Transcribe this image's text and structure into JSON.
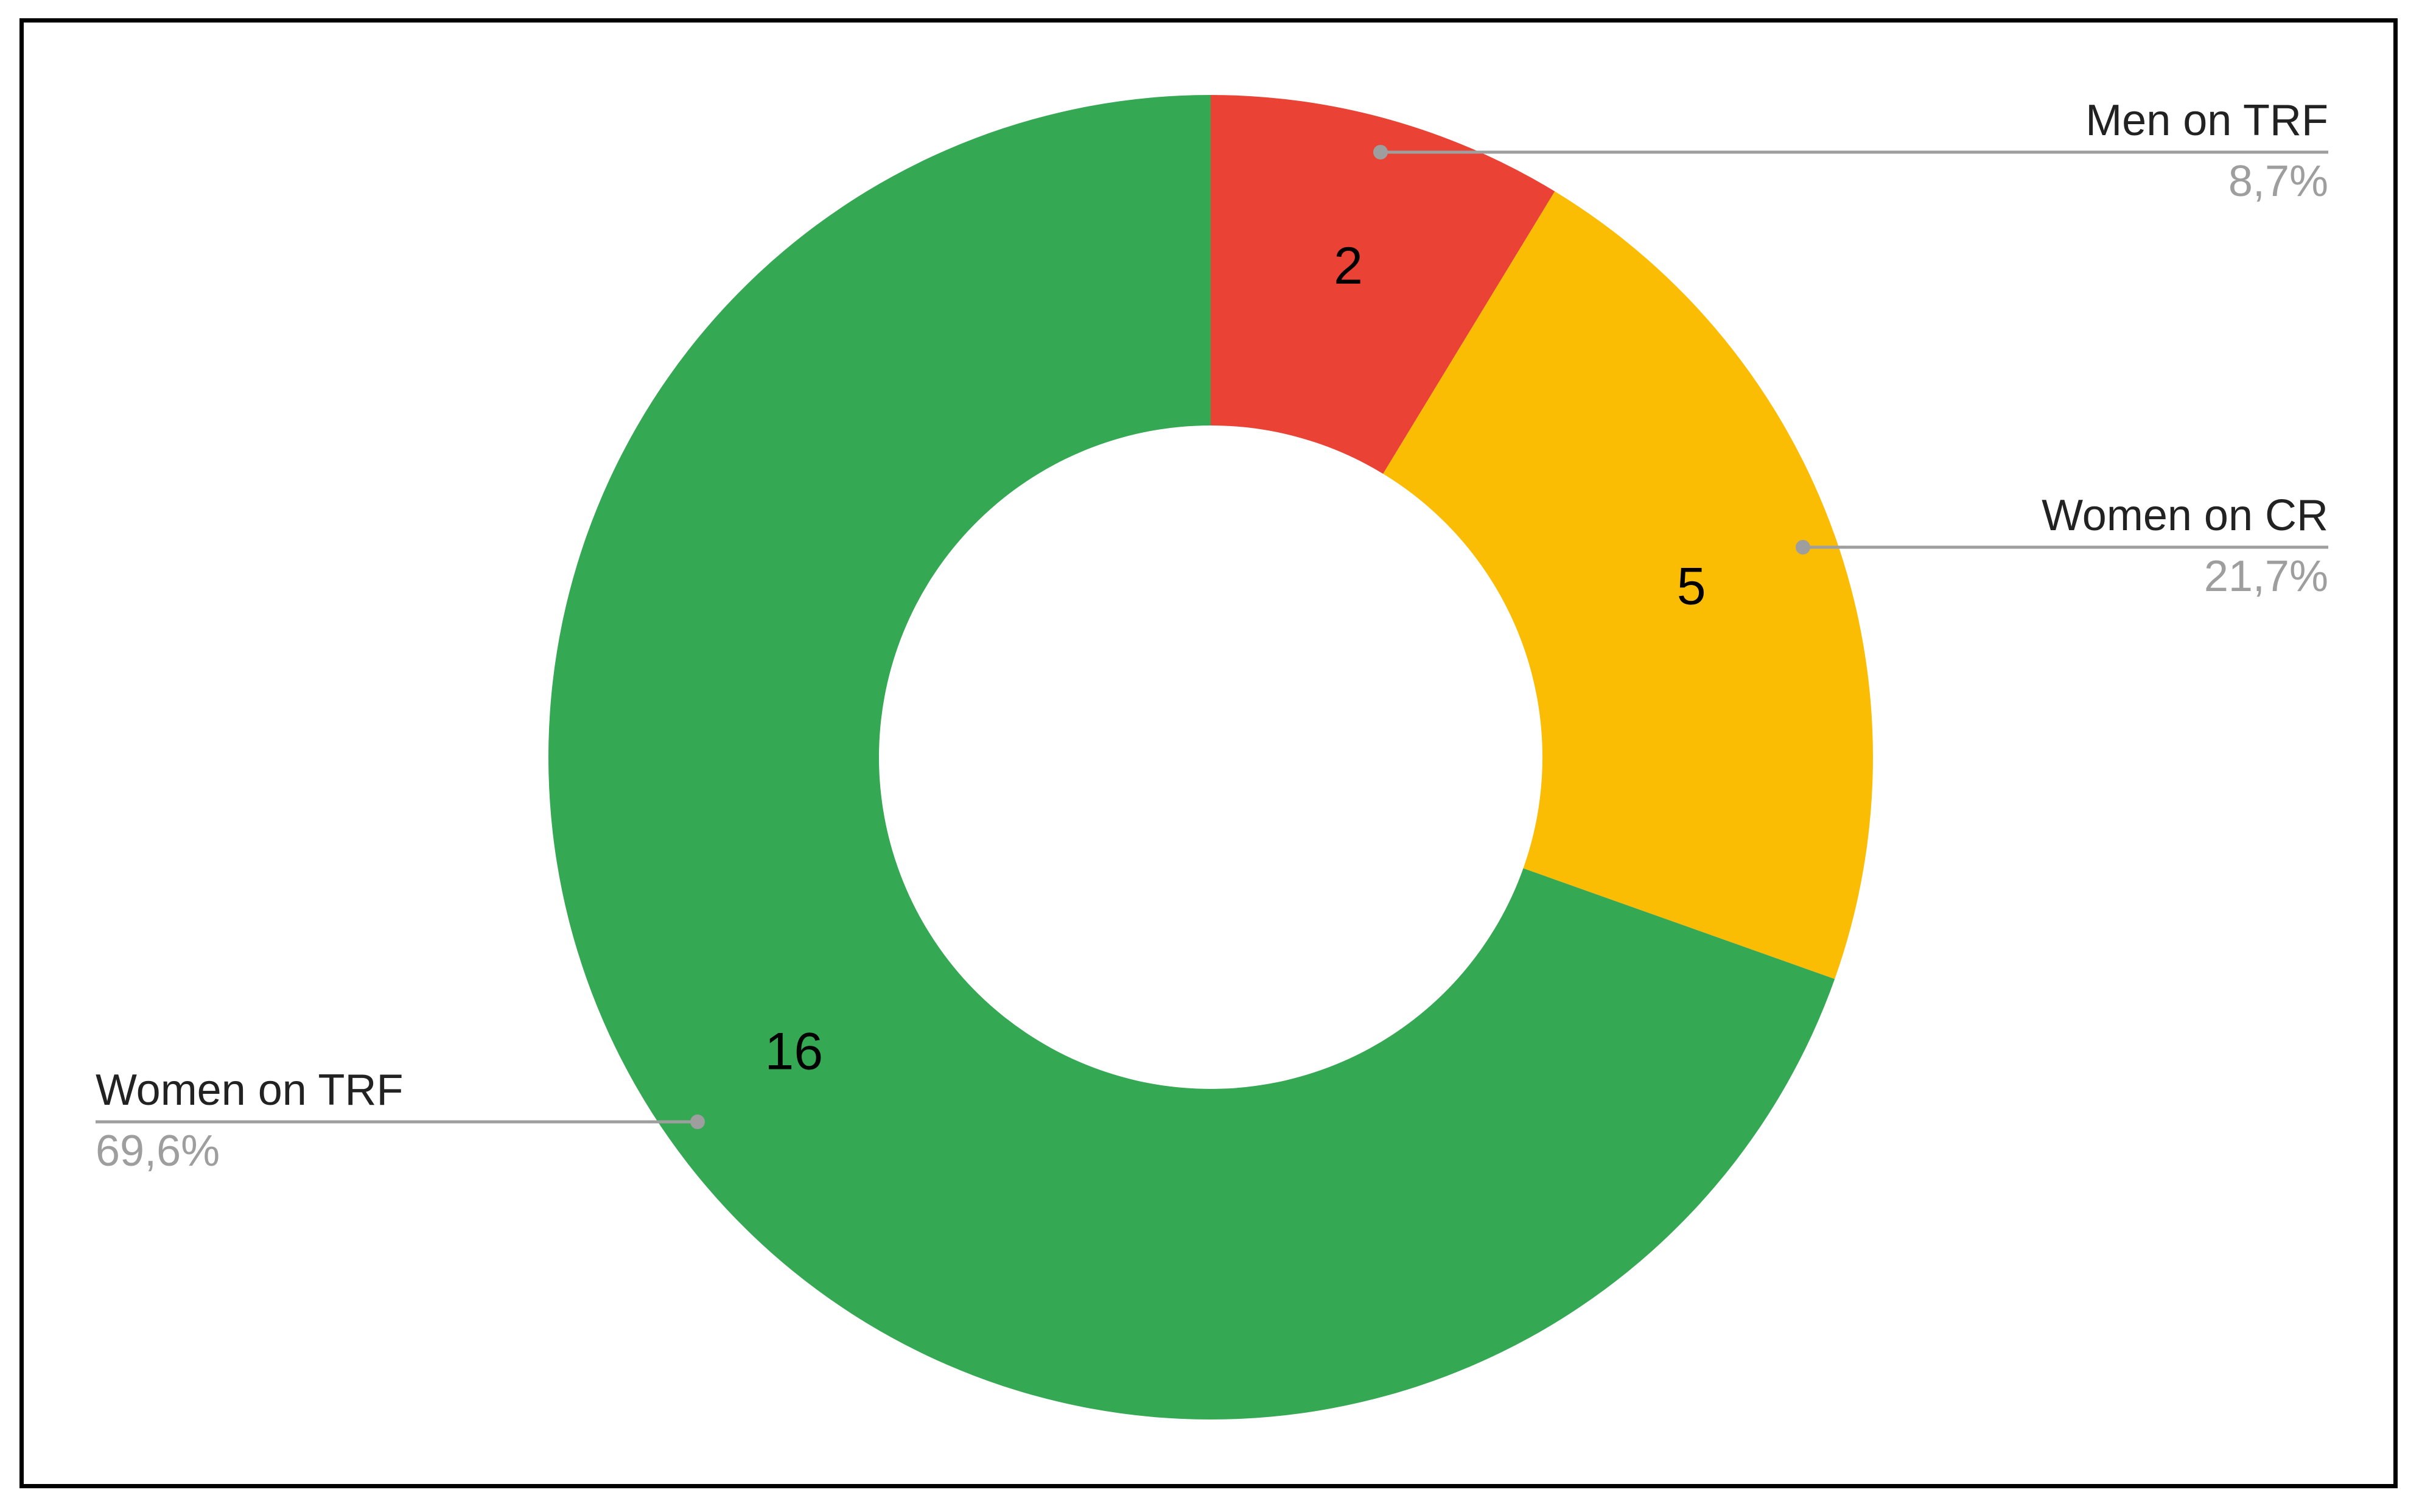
{
  "chart_data": {
    "type": "pie",
    "variant": "donut",
    "title": "",
    "slices": [
      {
        "label": "Men on TRF",
        "value": 2,
        "percent_label": "8,7%",
        "color": "#ea4335"
      },
      {
        "label": "Women on CR",
        "value": 5,
        "percent_label": "21,7%",
        "color": "#fbbc04"
      },
      {
        "label": "Women on TRF",
        "value": 16,
        "percent_label": "69,6%",
        "color": "#34a853"
      }
    ],
    "start_angle_deg": 0,
    "direction": "clockwise",
    "legend_placement": "callouts",
    "colors": {
      "leader_line": "#9e9e9e",
      "percent_text": "#9e9e9e",
      "value_text": "#000000",
      "frame": "#000000"
    }
  }
}
